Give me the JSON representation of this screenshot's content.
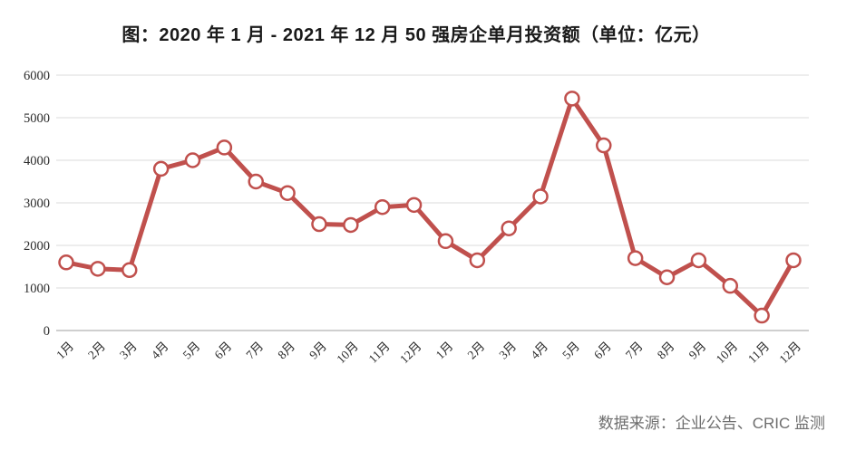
{
  "title": "图：2020 年 1 月 - 2021 年 12 月 50 强房企单月投资额（单位：亿元）",
  "source": "数据来源：企业公告、CRIC 监测",
  "colors": {
    "line": "#C0504D",
    "marker_fill": "#FFFFFF",
    "gridline": "#DBDBDB",
    "zero_axis_line": "#BFBFBF",
    "title_text": "#1A1A1A",
    "axis_tick_label": "#2B2B2B",
    "source_text": "#6E6E6E",
    "background": "#FFFFFF"
  },
  "chart_data": {
    "type": "line",
    "title": "图：2020 年 1 月 - 2021 年 12 月 50 强房企单月投资额（单位：亿元）",
    "xlabel": "",
    "ylabel": "",
    "x": [
      "1月",
      "2月",
      "3月",
      "4月",
      "5月",
      "6月",
      "7月",
      "8月",
      "9月",
      "10月",
      "11月",
      "12月",
      "1月",
      "2月",
      "3月",
      "4月",
      "5月",
      "6月",
      "7月",
      "8月",
      "9月",
      "10月",
      "11月",
      "12月"
    ],
    "values": [
      1600,
      1450,
      1420,
      3800,
      4000,
      4300,
      3500,
      3230,
      2500,
      2480,
      2900,
      2950,
      2100,
      1650,
      2400,
      3150,
      5450,
      4350,
      1700,
      1250,
      1650,
      1050,
      350,
      1650
    ],
    "ylim": [
      0,
      6000
    ],
    "yticks": [
      0,
      1000,
      2000,
      3000,
      4000,
      5000,
      6000
    ],
    "grid": true,
    "legend": false,
    "x_label_rotation": -45
  }
}
